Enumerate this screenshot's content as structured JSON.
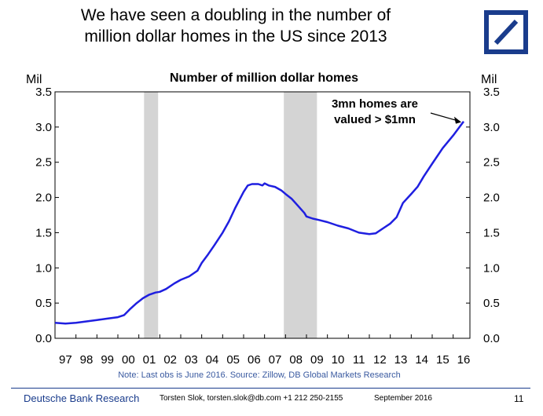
{
  "title_lines": [
    "We have seen a doubling in the number of",
    "million dollar homes in the US since 2013"
  ],
  "footer": {
    "brand": "Deutsche Bank Research",
    "contact": "Torsten Slok, torsten.slok@db.com  +1 212 250-2155",
    "date": "September 2016",
    "page": "11"
  },
  "colors": {
    "line": "#1f1fe0",
    "recession": "#d4d4d4",
    "brand": "#1a3c8c",
    "note": "#3a5aa0"
  },
  "logo_icon": "deutsche-bank-logo",
  "chart_data": {
    "type": "line",
    "title": "Number of million dollar homes",
    "ylabel_left": "Mil",
    "ylabel_right": "Mil",
    "ylim": [
      0,
      3.5
    ],
    "yticks": [
      "0.0",
      "0.5",
      "1.0",
      "1.5",
      "2.0",
      "2.5",
      "3.0",
      "3.5"
    ],
    "xlim": [
      1997.0,
      2016.8
    ],
    "xticks": [
      "97",
      "98",
      "99",
      "00",
      "01",
      "02",
      "03",
      "04",
      "05",
      "06",
      "07",
      "08",
      "09",
      "10",
      "11",
      "12",
      "13",
      "14",
      "15",
      "16"
    ],
    "grid": false,
    "recessions": [
      [
        2001.25,
        2001.92
      ],
      [
        2007.92,
        2009.5
      ]
    ],
    "annotation": {
      "lines": [
        "3mn homes are",
        "valued > $1mn"
      ],
      "x": 2016.5,
      "y": 3.07
    },
    "note": "Note: Last obs is June 2016. Source: Zillow, DB Global Markets Research",
    "series": [
      {
        "values": [
          [
            1997.0,
            0.22
          ],
          [
            1997.5,
            0.21
          ],
          [
            1998.0,
            0.22
          ],
          [
            1998.5,
            0.24
          ],
          [
            1999.0,
            0.26
          ],
          [
            1999.5,
            0.28
          ],
          [
            2000.0,
            0.3
          ],
          [
            2000.3,
            0.33
          ],
          [
            2000.6,
            0.42
          ],
          [
            2000.9,
            0.5
          ],
          [
            2001.2,
            0.57
          ],
          [
            2001.5,
            0.62
          ],
          [
            2001.8,
            0.65
          ],
          [
            2002.0,
            0.66
          ],
          [
            2002.3,
            0.7
          ],
          [
            2002.7,
            0.78
          ],
          [
            2003.0,
            0.83
          ],
          [
            2003.4,
            0.88
          ],
          [
            2003.8,
            0.96
          ],
          [
            2004.0,
            1.07
          ],
          [
            2004.3,
            1.19
          ],
          [
            2004.6,
            1.32
          ],
          [
            2005.0,
            1.5
          ],
          [
            2005.3,
            1.66
          ],
          [
            2005.6,
            1.85
          ],
          [
            2006.0,
            2.08
          ],
          [
            2006.2,
            2.17
          ],
          [
            2006.4,
            2.19
          ],
          [
            2006.7,
            2.19
          ],
          [
            2006.9,
            2.17
          ],
          [
            2007.0,
            2.2
          ],
          [
            2007.2,
            2.17
          ],
          [
            2007.5,
            2.15
          ],
          [
            2007.8,
            2.1
          ],
          [
            2008.0,
            2.05
          ],
          [
            2008.3,
            1.98
          ],
          [
            2008.6,
            1.88
          ],
          [
            2008.9,
            1.78
          ],
          [
            2009.0,
            1.73
          ],
          [
            2009.3,
            1.7
          ],
          [
            2009.6,
            1.68
          ],
          [
            2010.0,
            1.65
          ],
          [
            2010.5,
            1.6
          ],
          [
            2011.0,
            1.56
          ],
          [
            2011.5,
            1.5
          ],
          [
            2012.0,
            1.48
          ],
          [
            2012.3,
            1.49
          ],
          [
            2012.7,
            1.57
          ],
          [
            2013.0,
            1.63
          ],
          [
            2013.3,
            1.72
          ],
          [
            2013.6,
            1.92
          ],
          [
            2014.0,
            2.05
          ],
          [
            2014.3,
            2.15
          ],
          [
            2014.6,
            2.3
          ],
          [
            2015.0,
            2.48
          ],
          [
            2015.5,
            2.7
          ],
          [
            2016.0,
            2.88
          ],
          [
            2016.5,
            3.08
          ]
        ]
      }
    ]
  }
}
